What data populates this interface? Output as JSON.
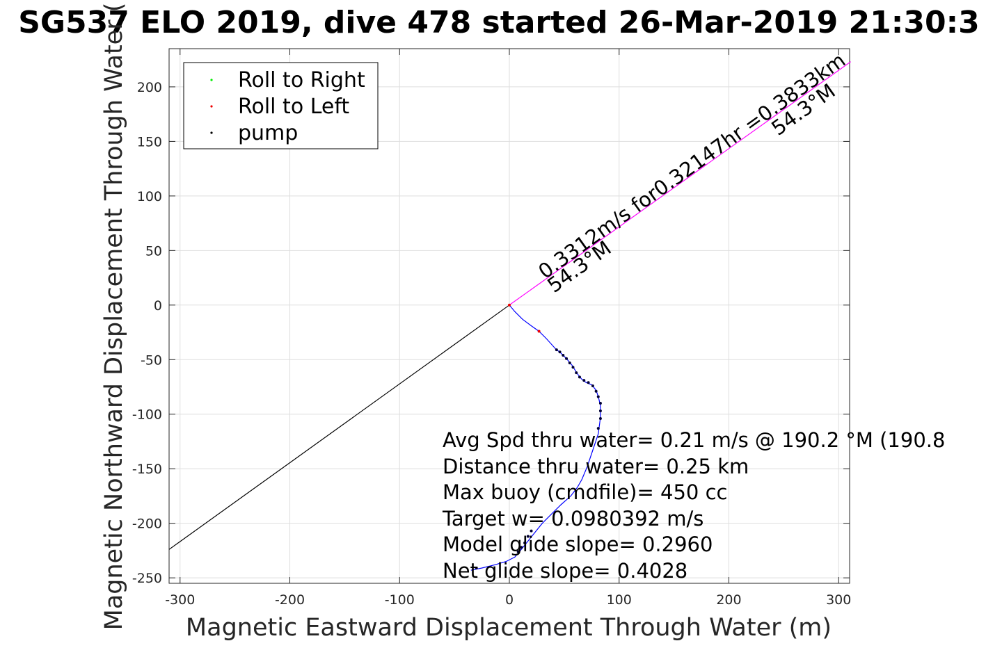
{
  "chart_data": {
    "type": "line",
    "title": "SG537 ELO 2019, dive 478 started 26-Mar-2019 21:30:3",
    "xlabel": "Magnetic Eastward Displacement Through Water (m)",
    "ylabel": "Magnetic Northward Displacement Through Water (",
    "xlim": [
      -310,
      310
    ],
    "ylim": [
      -255,
      235
    ],
    "xticks": [
      -300,
      -200,
      -100,
      0,
      100,
      200,
      300
    ],
    "yticks": [
      -250,
      -200,
      -150,
      -100,
      -50,
      0,
      50,
      100,
      150,
      200
    ],
    "grid": true,
    "legend": {
      "placement": "top-left",
      "entries": [
        {
          "label": "Roll to Right",
          "color": "#00ee00"
        },
        {
          "label": "Roll to Left",
          "color": "#ee0000"
        },
        {
          "label": "pump",
          "color": "#000000"
        }
      ]
    },
    "series": [
      {
        "color": "#0000ff",
        "x": [
          0,
          5,
          12,
          20,
          27,
          34,
          42,
          47,
          52,
          57,
          62,
          66,
          70,
          75,
          79,
          81,
          83,
          83,
          81,
          76,
          71,
          66,
          62,
          56,
          47,
          38,
          30,
          22,
          18,
          14,
          10,
          5,
          -3,
          -13,
          -25,
          -35
        ],
        "y": [
          0,
          -6,
          -13,
          -19,
          -24,
          -31,
          -40,
          -44,
          -49,
          -55,
          -63,
          -68,
          -71,
          -73,
          -78,
          -84,
          -92,
          -103,
          -118,
          -133,
          -148,
          -160,
          -167,
          -175,
          -183,
          -192,
          -200,
          -210,
          -215,
          -220,
          -225,
          -231,
          -235,
          -238,
          -241,
          -243
        ]
      },
      {
        "color": "#000000",
        "x": [
          0,
          -310
        ],
        "y": [
          0,
          -224
        ]
      },
      {
        "color": "#ff00ff",
        "x": [
          0,
          311
        ],
        "y": [
          0,
          223
        ]
      }
    ],
    "markers": {
      "roll_left": [
        {
          "x": 0,
          "y": 0
        },
        {
          "x": 27,
          "y": -24
        }
      ],
      "pump": [
        {
          "x": 43,
          "y": -41
        },
        {
          "x": 46,
          "y": -43
        },
        {
          "x": 49,
          "y": -46
        },
        {
          "x": 52,
          "y": -49
        },
        {
          "x": 55,
          "y": -53
        },
        {
          "x": 58,
          "y": -57
        },
        {
          "x": 61,
          "y": -62
        },
        {
          "x": 64,
          "y": -66
        },
        {
          "x": 68,
          "y": -69
        },
        {
          "x": 72,
          "y": -71
        },
        {
          "x": 76,
          "y": -74
        },
        {
          "x": 79,
          "y": -79
        },
        {
          "x": 81,
          "y": -84
        },
        {
          "x": 83,
          "y": -90
        },
        {
          "x": 83,
          "y": -97
        },
        {
          "x": 83,
          "y": -104
        },
        {
          "x": 81,
          "y": -113
        },
        {
          "x": 20,
          "y": -207
        },
        {
          "x": 17,
          "y": -212
        },
        {
          "x": 14,
          "y": -218
        },
        {
          "x": 11,
          "y": -222
        },
        {
          "x": 8,
          "y": -226
        },
        {
          "x": -30,
          "y": -241
        }
      ]
    },
    "diagonal_labels": [
      {
        "text": "0.3312m/s for0.32147hr =0.3833km"
      },
      {
        "text": "54.3°M"
      },
      {
        "text": "54.3°M"
      }
    ],
    "annotations": [
      "Avg Spd thru water=  0.21 m/s @ 190.2 °M (190.8",
      "Distance thru water=  0.25 km",
      "Max buoy (cmdfile)= 450 cc",
      "Target w= 0.0980392 m/s",
      "Model glide slope= 0.2960",
      "Net glide slope= 0.4028"
    ]
  }
}
